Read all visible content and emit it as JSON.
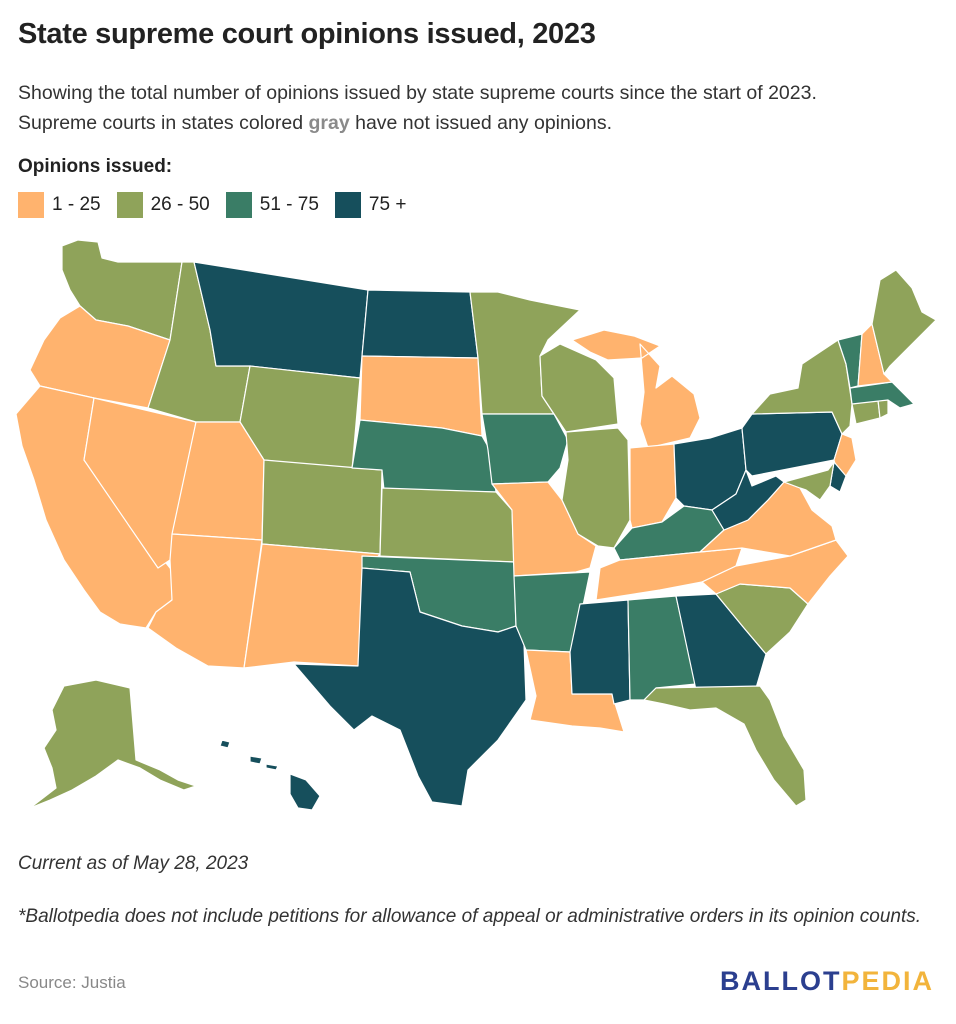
{
  "title": "State supreme court opinions issued, 2023",
  "subtitle_part1": "Showing the total number of opinions issued by state supreme courts since the start of 2023.",
  "subtitle_part2a": "Supreme courts in states colored ",
  "subtitle_gray": "gray",
  "subtitle_part2b": " have not issued any opinions.",
  "legend": {
    "title": "Opinions issued:",
    "items": [
      {
        "label": "1 - 25",
        "color": "#ffb36e"
      },
      {
        "label": "26 - 50",
        "color": "#8fa35a"
      },
      {
        "label": "51 - 75",
        "color": "#3a7d66"
      },
      {
        "label": "75 +",
        "color": "#164f5c"
      }
    ]
  },
  "note_date": "Current as of May 28, 2023",
  "note_footnote": "*Ballotpedia does not include petitions for allowance of appeal or administrative orders in its opinion counts.",
  "source": "Source: Justia",
  "logo": {
    "part1": "BALLOT",
    "part2": "PEDIA"
  },
  "state_bins": {
    "WA": "26 - 50",
    "OR": "1 - 25",
    "CA": "1 - 25",
    "NV": "1 - 25",
    "ID": "26 - 50",
    "MT": "75 +",
    "WY": "26 - 50",
    "UT": "1 - 25",
    "AZ": "1 - 25",
    "CO": "26 - 50",
    "NM": "1 - 25",
    "ND": "75 +",
    "SD": "1 - 25",
    "NE": "51 - 75",
    "KS": "26 - 50",
    "OK": "51 - 75",
    "TX": "75 +",
    "MN": "26 - 50",
    "IA": "51 - 75",
    "MO": "1 - 25",
    "AR": "51 - 75",
    "LA": "1 - 25",
    "WI": "26 - 50",
    "IL": "26 - 50",
    "MI": "1 - 25",
    "IN": "1 - 25",
    "OH": "75 +",
    "KY": "51 - 75",
    "TN": "1 - 25",
    "MS": "75 +",
    "AL": "51 - 75",
    "GA": "75 +",
    "FL": "26 - 50",
    "SC": "26 - 50",
    "NC": "1 - 25",
    "VA": "1 - 25",
    "WV": "75 +",
    "PA": "75 +",
    "NY": "26 - 50",
    "VT": "51 - 75",
    "NH": "1 - 25",
    "ME": "26 - 50",
    "MA": "51 - 75",
    "CT": "26 - 50",
    "RI": "26 - 50",
    "NJ": "1 - 25",
    "DE": "75 +",
    "MD": "26 - 50",
    "AK": "26 - 50",
    "HI": "75 +"
  }
}
